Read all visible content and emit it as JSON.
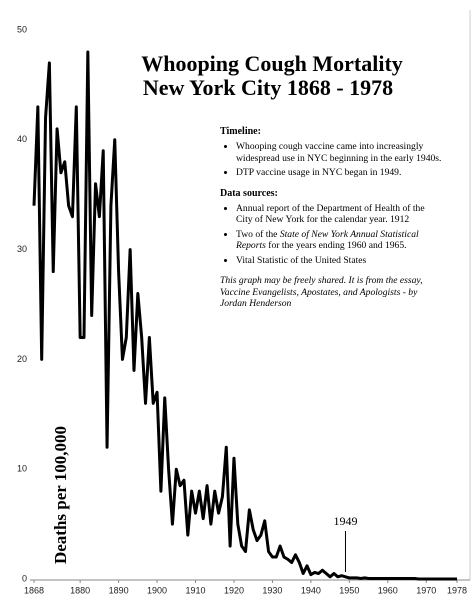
{
  "chart_data": {
    "type": "line",
    "title_lines": [
      "Whooping Cough Mortality",
      "New York City 1868 - 1978"
    ],
    "y_label": "Deaths per 100,000",
    "x": [
      1868,
      1869,
      1870,
      1871,
      1872,
      1873,
      1874,
      1875,
      1876,
      1877,
      1878,
      1879,
      1880,
      1881,
      1882,
      1883,
      1884,
      1885,
      1886,
      1887,
      1888,
      1889,
      1890,
      1891,
      1892,
      1893,
      1894,
      1895,
      1896,
      1897,
      1898,
      1899,
      1900,
      1901,
      1902,
      1903,
      1904,
      1905,
      1906,
      1907,
      1908,
      1909,
      1910,
      1911,
      1912,
      1913,
      1914,
      1915,
      1916,
      1917,
      1918,
      1919,
      1920,
      1921,
      1922,
      1923,
      1924,
      1925,
      1926,
      1927,
      1928,
      1929,
      1930,
      1931,
      1932,
      1933,
      1934,
      1935,
      1936,
      1937,
      1938,
      1939,
      1940,
      1941,
      1942,
      1943,
      1944,
      1945,
      1946,
      1947,
      1948,
      1949,
      1950,
      1951,
      1952,
      1953,
      1954,
      1955,
      1956,
      1957,
      1958,
      1959,
      1960,
      1961,
      1962,
      1963,
      1964,
      1965,
      1966,
      1967,
      1968,
      1969,
      1970,
      1971,
      1972,
      1973,
      1974,
      1975,
      1976,
      1977,
      1978
    ],
    "series": [
      {
        "color": "#000000",
        "values": [
          34,
          43,
          20,
          42,
          47,
          28,
          41,
          37,
          38,
          34,
          33,
          43,
          22,
          22,
          48,
          24,
          36,
          33,
          39,
          12,
          34,
          40,
          28,
          20,
          22,
          30,
          19,
          26,
          22,
          16,
          22,
          16,
          17,
          8,
          16.5,
          10,
          5,
          10,
          8.5,
          9,
          4,
          8,
          6,
          8,
          5.5,
          8.5,
          5,
          8,
          6,
          7.5,
          12,
          3,
          11,
          5,
          3,
          2.5,
          6.3,
          4.5,
          3.5,
          4,
          5.3,
          2.5,
          2,
          2,
          3,
          2,
          1.8,
          1.5,
          2.2,
          1.5,
          0.5,
          1.2,
          0.4,
          0.6,
          0.5,
          0.8,
          0.5,
          0.2,
          0.5,
          0.2,
          0.3,
          0.2,
          0.1,
          0.1,
          0.1,
          0.05,
          0.1,
          0.05,
          0.05,
          0.05,
          0.05,
          0.05,
          0.05,
          0.05,
          0.05,
          0.05,
          0.05,
          0.05,
          0.05,
          0.05,
          0,
          0,
          0,
          0,
          0,
          0,
          0,
          0,
          0,
          0,
          0
        ]
      }
    ],
    "xlim": [
      1868,
      1978
    ],
    "xticks": [
      1868,
      1880,
      1890,
      1900,
      1910,
      1920,
      1930,
      1940,
      1950,
      1960,
      1970,
      1978
    ],
    "ylim": [
      0,
      50
    ],
    "yticks": [
      0,
      10,
      20,
      30,
      40,
      50
    ],
    "annotations": [
      {
        "text": "1949",
        "x": 1949
      }
    ],
    "notes": {
      "timeline_heading": "Timeline:",
      "timeline": [
        "Whooping cough vaccine came into increasingly widespread use in NYC beginning in the early 1940s.",
        "DTP vaccine usage in NYC began in 1949."
      ],
      "sources_heading": "Data sources:",
      "sources": [
        [
          "Annual report of the Department of Health of the City of New York for the calendar year. 1912"
        ],
        [
          "Two of the ",
          "State of New York Annual Statistical Reports",
          " for the years ending 1960 and 1965."
        ],
        [
          "Vital Statistic of the United States"
        ]
      ],
      "footer": "This graph may be freely shared. It is from the essay, Vaccine Evangelists, Apostates, and Apologists - by Jordan Henderson"
    }
  }
}
